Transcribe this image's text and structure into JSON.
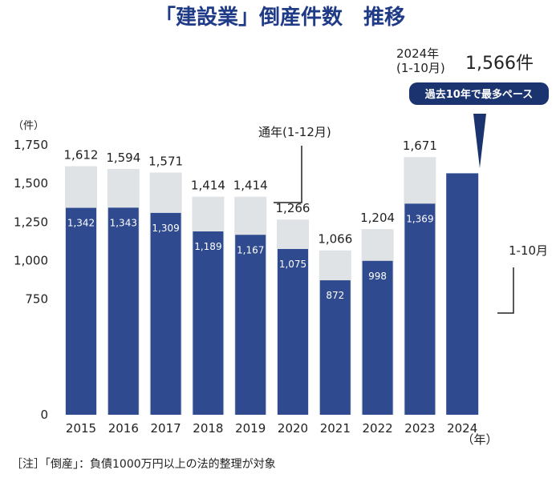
{
  "chart_data": {
    "type": "bar",
    "title": "「建設業」倒産件数　推移",
    "ylabel": "（件）",
    "xlabel_unit": "（年）",
    "ylim": [
      0,
      1750
    ],
    "yticks": [
      "0",
      "750",
      "1,000",
      "1,250",
      "1,500",
      "1,750"
    ],
    "ytick_values": [
      0,
      750,
      1000,
      1250,
      1500,
      1750
    ],
    "categories": [
      "2015",
      "2016",
      "2017",
      "2018",
      "2019",
      "2020",
      "2021",
      "2022",
      "2023",
      "2024"
    ],
    "series": [
      {
        "name": "通年(1-12月)",
        "values": [
          1612,
          1594,
          1571,
          1414,
          1414,
          1266,
          1066,
          1204,
          1671,
          null
        ],
        "labels": [
          "1,612",
          "1,594",
          "1,571",
          "1,414",
          "1,414",
          "1,266",
          "1,066",
          "1,204",
          "1,671",
          ""
        ]
      },
      {
        "name": "1-10月",
        "values": [
          1342,
          1343,
          1309,
          1189,
          1167,
          1075,
          872,
          998,
          1369,
          1566
        ],
        "labels": [
          "1,342",
          "1,343",
          "1,309",
          "1,189",
          "1,167",
          "1,075",
          "872",
          "998",
          "1,369",
          ""
        ]
      }
    ],
    "colors": {
      "full_year": "#dfe3e6",
      "jan_oct": "#2f4a8f",
      "title": "#1f3a86",
      "badge": "#1b3470"
    },
    "highlight": {
      "period_line1": "2024年",
      "period_line2": "(1-10月)",
      "value_text": "1,566件",
      "badge": "過去10年で最多ペース"
    },
    "note": "［注］「倒産」：負債1000万円以上の法的整理が対象"
  }
}
